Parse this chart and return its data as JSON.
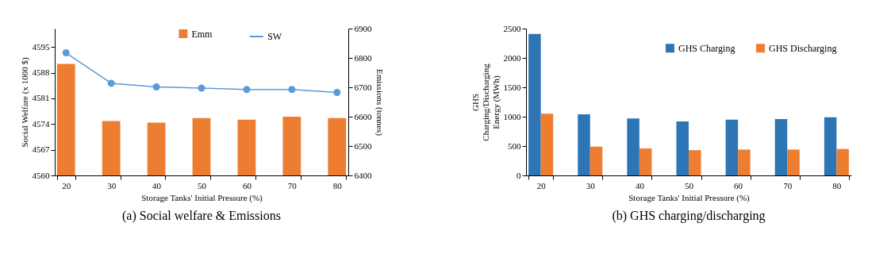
{
  "chart_data": [
    {
      "type": "bar",
      "title": "(a) Social welfare & Emissions",
      "xlabel": "Storage Tanks' Initial Pressure (%)",
      "ylabel": "Social Welfare  (x 1000 $)",
      "y2label": "Emissions (tonnes)",
      "categories": [
        "20",
        "30",
        "40",
        "50",
        "60",
        "70",
        "80"
      ],
      "ylim": [
        4560,
        4600
      ],
      "yticks": [
        4560,
        4567,
        4574,
        4581,
        4588,
        4595
      ],
      "y2lim": [
        6400,
        6900
      ],
      "y2ticks": [
        6400,
        6500,
        6600,
        6700,
        6800,
        6900
      ],
      "legend": "top",
      "grid": false,
      "series": [
        {
          "name": "Emm",
          "type": "bar",
          "axis": "y2",
          "color": "#ed7d31",
          "values": [
            6780,
            6585,
            6580,
            6595,
            6590,
            6600,
            6595
          ]
        },
        {
          "name": "SW",
          "type": "line",
          "marker": "circle",
          "color": "#5b9bd5",
          "values": [
            4593.4,
            4585.1,
            4584.1,
            4583.8,
            4583.4,
            4583.4,
            4582.6
          ]
        }
      ]
    },
    {
      "type": "bar",
      "title": "(b) GHS charging/discharging",
      "xlabel": "Storage Tanks' Initial Pressure (%)",
      "ylabel": "GHS Charging/Discharging Energy (MWh)",
      "categories": [
        "20",
        "30",
        "40",
        "50",
        "60",
        "70",
        "80"
      ],
      "ylim": [
        0,
        2500
      ],
      "yticks": [
        0,
        500,
        1000,
        1500,
        2000,
        2500
      ],
      "legend": "top right",
      "grid": false,
      "series": [
        {
          "name": "GHS Charging",
          "color": "#2e75b6",
          "values": [
            2410,
            1040,
            970,
            920,
            950,
            960,
            990
          ]
        },
        {
          "name": "GHS Discharging",
          "color": "#ed7d31",
          "values": [
            1050,
            490,
            460,
            430,
            440,
            440,
            450
          ]
        }
      ]
    }
  ]
}
